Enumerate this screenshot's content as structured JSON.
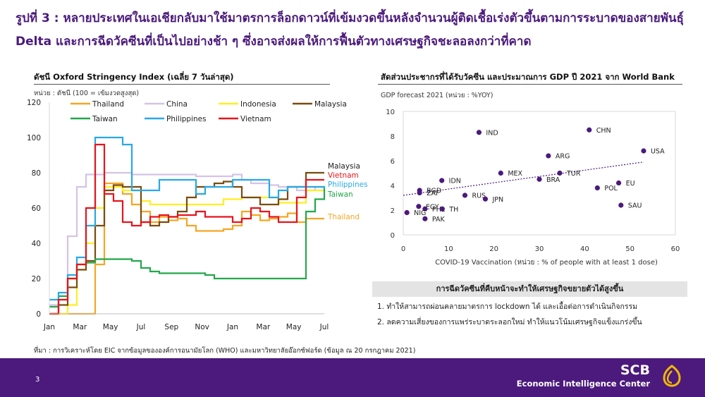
{
  "header": {
    "title": "รูปที่ 3 : หลายประเทศในเอเชียกลับมาใช้มาตรการล็อกดาวน์ที่เข้มงวดขึ้นหลังจำนวนผู้ติดเชื้อเร่งตัวขึ้นตามการระบาดของสายพันธุ์ Delta และการฉีดวัคซีนที่เป็นไปอย่างช้า ๆ ซึ่งอาจส่งผลให้การฟื้นตัวทางเศรษฐกิจชะลอลงกว่าที่คาด"
  },
  "left_panel": {
    "title": "ดัชนี Oxford Stringency Index (เฉลี่ย 7 วันล่าสุด)",
    "unit": "หน่วย : ดัชนี (100 = เข้มงวดสูงสุด)"
  },
  "right_panel": {
    "title": "สัดส่วนประชากรที่ได้รับวัคซีน และประมาณการ GDP ปี 2021 จาก World Bank",
    "unit": "GDP forecast 2021 (หน่วย : %YOY)"
  },
  "takeaways": {
    "heading": "การฉีดวัคซีนที่คืบหน้าจะทำให้เศรษฐกิจขยายตัวได้สูงขึ้น",
    "items": [
      "1.  ทำให้สามารถผ่อนคลายมาตรการ  lockdown ได้ และเอื้อต่อการดำเนินกิจกรรม",
      "2.  ลดความเสี่ยงของการแพร่ระบาดระลอกใหม่ ทำให้แนวโน้มเศรษฐกิจแข็งแกร่งขึ้น"
    ]
  },
  "source": "ที่มา : การวิเคราะห์โดย EIC จากข้อมูลขององค์การอนามัยโลก (WHO) และมหาวิทยาลัยอ๊อกซ์ฟอร์ด (ข้อมูล ณ 20 กรกฎาคม 2021)",
  "footer": {
    "page": "3",
    "brand": "SCB",
    "subtitle": "Economic Intelligence Center",
    "logo_icon": "scb-emblem-icon"
  },
  "colors": {
    "accent": "#4b1a7c",
    "Thailand": "#f5a623",
    "China": "#d4c3e6",
    "Indonesia": "#ffee22",
    "Malaysia": "#7a4b0f",
    "Taiwan": "#22a84a",
    "Philippines": "#28a9e6",
    "Vietnam": "#e8141b",
    "scatter_point": "#4b1a7c"
  },
  "chart_data": [
    {
      "type": "line",
      "x_ticks": [
        "Jan",
        "Mar",
        "May",
        "Jul",
        "Sep",
        "Nov",
        "Jan",
        "Mar",
        "May",
        "Jul"
      ],
      "ylim": [
        0,
        120
      ],
      "y_ticks": [
        0,
        20,
        40,
        60,
        80,
        100,
        120
      ],
      "legend_position": "top",
      "end_labels": [
        "Malaysia",
        "Vietnam",
        "Philippines",
        "Taiwan",
        "Thailand"
      ],
      "series": [
        {
          "name": "Thailand",
          "values": [
            0,
            0,
            0,
            0,
            0,
            28,
            74,
            74,
            68,
            62,
            58,
            52,
            55,
            53,
            54,
            50,
            47,
            47,
            47,
            48,
            50,
            58,
            56,
            53,
            54,
            55,
            57,
            52,
            54,
            54,
            54
          ]
        },
        {
          "name": "China",
          "values": [
            5,
            8,
            44,
            72,
            79,
            79,
            80,
            80,
            80,
            79,
            79,
            79,
            79,
            79,
            79,
            79,
            78,
            78,
            78,
            78,
            79,
            76,
            74,
            74,
            73,
            72,
            72,
            70,
            70,
            72,
            72
          ]
        },
        {
          "name": "Indonesia",
          "values": [
            0,
            0,
            5,
            25,
            40,
            60,
            72,
            72,
            70,
            70,
            64,
            62,
            62,
            62,
            62,
            62,
            62,
            62,
            62,
            65,
            65,
            66,
            66,
            66,
            66,
            63,
            63,
            63,
            70,
            70,
            70
          ]
        },
        {
          "name": "Malaysia",
          "values": [
            0,
            5,
            15,
            25,
            30,
            50,
            70,
            73,
            72,
            72,
            52,
            50,
            52,
            55,
            58,
            66,
            72,
            72,
            74,
            75,
            72,
            66,
            66,
            62,
            62,
            65,
            72,
            72,
            80,
            80,
            80
          ]
        },
        {
          "name": "Taiwan",
          "values": [
            4,
            10,
            20,
            28,
            29,
            31,
            31,
            31,
            31,
            30,
            26,
            24,
            23,
            23,
            23,
            23,
            23,
            22,
            20,
            20,
            20,
            20,
            20,
            20,
            20,
            20,
            20,
            20,
            58,
            65,
            72
          ]
        },
        {
          "name": "Philippines",
          "values": [
            8,
            12,
            22,
            32,
            50,
            100,
            100,
            100,
            96,
            70,
            70,
            70,
            76,
            76,
            76,
            76,
            68,
            72,
            72,
            72,
            76,
            76,
            76,
            76,
            66,
            70,
            72,
            72,
            72,
            72,
            71
          ]
        },
        {
          "name": "Vietnam",
          "values": [
            0,
            8,
            20,
            28,
            60,
            96,
            68,
            64,
            52,
            50,
            52,
            55,
            56,
            55,
            56,
            56,
            58,
            55,
            55,
            55,
            52,
            54,
            60,
            58,
            55,
            52,
            52,
            66,
            76,
            76,
            76
          ]
        }
      ]
    },
    {
      "type": "scatter",
      "xlabel": "COVID-19 Vaccination (หน่วย : % of people with at least 1 dose)",
      "ylabel": "GDP forecast 2021 (หน่วย : %YOY)",
      "xlim": [
        0,
        60
      ],
      "ylim": [
        0,
        10
      ],
      "x_ticks": [
        0,
        10,
        20,
        30,
        40,
        50,
        60
      ],
      "y_ticks": [
        0,
        2,
        4,
        6,
        8,
        10
      ],
      "trendline": {
        "style": "dotted",
        "x": [
          0,
          53
        ],
        "y": [
          3.2,
          5.9
        ]
      },
      "points": [
        {
          "label": "IND",
          "x": 16.7,
          "y": 8.3
        },
        {
          "label": "CHN",
          "x": 41,
          "y": 8.5
        },
        {
          "label": "USA",
          "x": 53,
          "y": 6.8
        },
        {
          "label": "ARG",
          "x": 32,
          "y": 6.4
        },
        {
          "label": "MEX",
          "x": 21.5,
          "y": 5.0
        },
        {
          "label": "TUR",
          "x": 34.5,
          "y": 5.0
        },
        {
          "label": "BRA",
          "x": 30,
          "y": 4.5
        },
        {
          "label": "IDN",
          "x": 8.5,
          "y": 4.4
        },
        {
          "label": "EU",
          "x": 47.5,
          "y": 4.2
        },
        {
          "label": "POL",
          "x": 42.8,
          "y": 3.8
        },
        {
          "label": "BGD",
          "x": 3.6,
          "y": 3.6
        },
        {
          "label": "ZAF",
          "x": 3.6,
          "y": 3.4
        },
        {
          "label": "RUS",
          "x": 13.6,
          "y": 3.2
        },
        {
          "label": "JPN",
          "x": 18.1,
          "y": 2.9
        },
        {
          "label": "SAU",
          "x": 48,
          "y": 2.4
        },
        {
          "label": "EGY",
          "x": 3.4,
          "y": 2.3
        },
        {
          "label": "PHL",
          "x": 4.8,
          "y": 2.1
        },
        {
          "label": "TH",
          "x": 8.6,
          "y": 2.1
        },
        {
          "label": "NIG",
          "x": 0.8,
          "y": 1.8
        },
        {
          "label": "PAK",
          "x": 4.8,
          "y": 1.3
        }
      ]
    }
  ]
}
